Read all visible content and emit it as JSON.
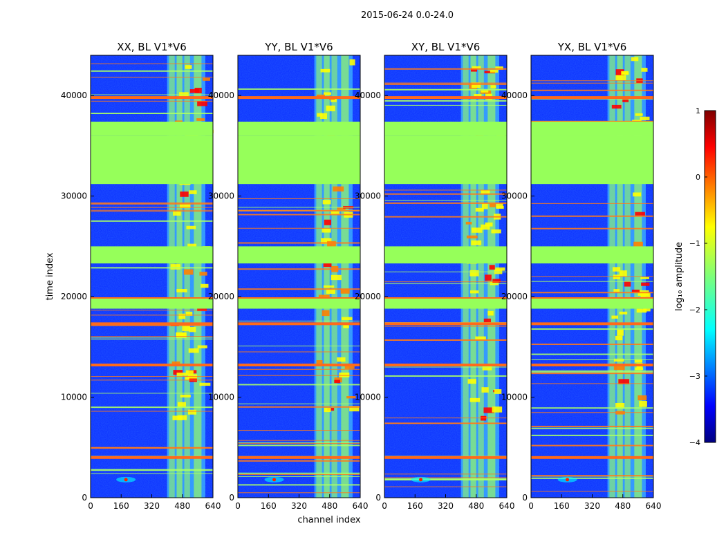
{
  "chart_data": {
    "type": "heatmap",
    "title": "2015-06-24 0.0-24.0",
    "xlabel": "channel index",
    "ylabel": "time index",
    "xlim": [
      0,
      640
    ],
    "ylim": [
      0,
      44000
    ],
    "xticks": [
      "0",
      "160",
      "320",
      "480",
      "640"
    ],
    "yticks": [
      "0",
      "10000",
      "20000",
      "30000",
      "40000"
    ],
    "panels": [
      {
        "name": "XX",
        "title": "XX, BL V1*V6",
        "flare_channel": 185,
        "band_strength": 0.55
      },
      {
        "name": "YY",
        "title": "YY, BL V1*V6",
        "flare_channel": 190,
        "band_strength": 0.75
      },
      {
        "name": "XY",
        "title": "XY, BL V1*V6",
        "flare_channel": 190,
        "band_strength": 0.45
      },
      {
        "name": "YX",
        "title": "YX, BL V1*V6",
        "flare_channel": 190,
        "band_strength": 0.55
      }
    ],
    "signal_band_channels": [
      400,
      600
    ],
    "flagged_blocks_time": [
      [
        31200,
        36000
      ],
      [
        36000,
        37400
      ],
      [
        23300,
        25000
      ],
      [
        18800,
        19800
      ]
    ],
    "colorbar": {
      "label": "log₁₀ amplitude",
      "range": [
        -4,
        1
      ],
      "ticks": [
        "1",
        "0",
        "−1",
        "−2",
        "−3",
        "−4"
      ],
      "colormap": "jet"
    }
  }
}
